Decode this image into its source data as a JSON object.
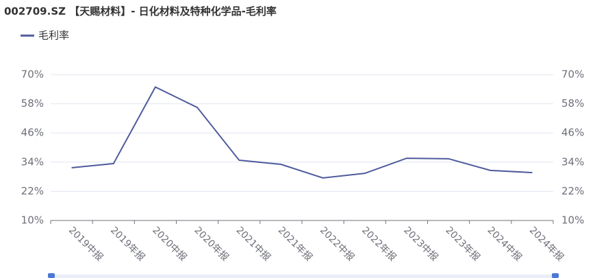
{
  "chart_data": {
    "type": "line",
    "title": "002709.SZ 【天赐材料】- 日化材料及特种化学品-毛利率",
    "categories": [
      "2019中报",
      "2019年报",
      "2020中报",
      "2020年报",
      "2021中报",
      "2021年报",
      "2022中报",
      "2022年报",
      "2023中报",
      "2023年报",
      "2024中报",
      "2024年报"
    ],
    "series": [
      {
        "name": "毛利率",
        "color": "#4e5a9c",
        "values": [
          31.7,
          33.4,
          64.9,
          56.5,
          34.8,
          33.1,
          27.5,
          29.4,
          35.6,
          35.4,
          30.6,
          29.7
        ]
      }
    ],
    "ylim": [
      10,
      70
    ],
    "yticks": [
      {
        "value": 10,
        "label": "10%"
      },
      {
        "value": 22,
        "label": "22%"
      },
      {
        "value": 34,
        "label": "34%"
      },
      {
        "value": 46,
        "label": "46%"
      },
      {
        "value": 58,
        "label": "58%"
      },
      {
        "value": 70,
        "label": "70%"
      }
    ],
    "y2lim": [
      10,
      70
    ],
    "y2ticks": [
      {
        "value": 10,
        "label": "10%"
      },
      {
        "value": 22,
        "label": "22%"
      },
      {
        "value": 34,
        "label": "34%"
      },
      {
        "value": 46,
        "label": "46%"
      },
      {
        "value": 58,
        "label": "58%"
      },
      {
        "value": 70,
        "label": "70%"
      }
    ],
    "grid": true,
    "legend": "top-left"
  }
}
